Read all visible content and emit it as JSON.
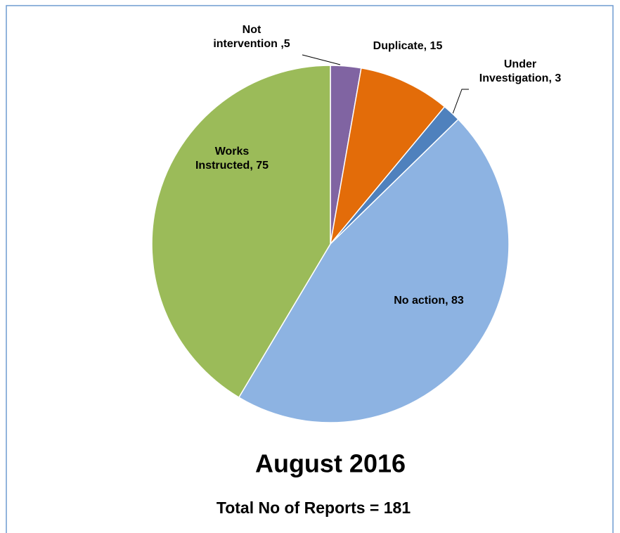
{
  "chart_data": {
    "type": "pie",
    "title": "August 2016",
    "subtitle": "Total No of Reports = 181",
    "categories": [
      "Not intervention",
      "Duplicate",
      "Under Investigation",
      "No action",
      "Works Instructed"
    ],
    "values": [
      5,
      15,
      3,
      83,
      75
    ],
    "value_labels": [
      "Not intervention ,5",
      "Duplicate, 15",
      "Under Investigation, 3",
      "No action, 83",
      "Works Instructed, 75"
    ],
    "colors": [
      "#8064a2",
      "#e36c09",
      "#4f81bd",
      "#8db3e2",
      "#9bbb59"
    ]
  }
}
